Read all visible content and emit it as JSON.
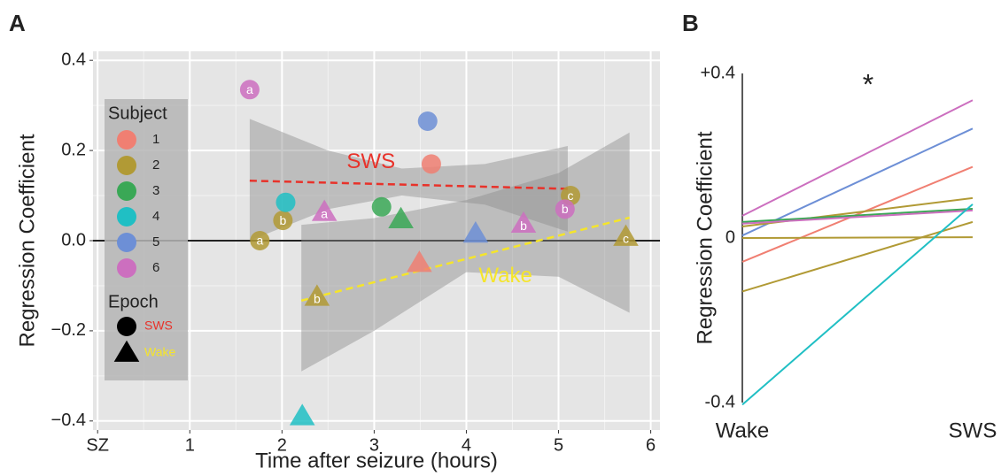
{
  "chart_data": [
    {
      "type": "scatter",
      "panel": "A",
      "xlabel": "Time after seizure (hours)",
      "ylabel": "Regression Coefficient",
      "xlim": [
        -0.05,
        6.1
      ],
      "ylim": [
        -0.42,
        0.42
      ],
      "xticks": [
        {
          "value": 0,
          "label": "SZ"
        },
        1,
        2,
        3,
        4,
        5,
        6
      ],
      "yticks": [
        {
          "value": -0.4,
          "label": "−0.4"
        },
        {
          "value": -0.2,
          "label": "−0.2"
        },
        {
          "value": 0,
          "label": "0.0"
        },
        0.2,
        0.4
      ],
      "grid": true,
      "hline": 0,
      "legend": "upper left",
      "legend_title": "Subject",
      "epoch_title": "Epoch",
      "epochs": [
        {
          "name": "SWS",
          "marker": "circle",
          "color": "#e8322a"
        },
        {
          "name": "Wake",
          "marker": "triangle",
          "color": "#f5e52a"
        }
      ],
      "series": [
        {
          "name": "1",
          "color": "#f07f72",
          "x": [
            3.62,
            3.49
          ],
          "values": [
            0.17,
            -0.05
          ],
          "epoch": [
            "SWS",
            "Wake"
          ],
          "point_labels": [
            null,
            null
          ]
        },
        {
          "name": "2",
          "color": "#b19a35",
          "x": [
            1.76,
            2.01,
            5.13,
            2.38,
            5.73
          ],
          "values": [
            0.0,
            0.045,
            0.1,
            -0.125,
            0.008
          ],
          "epoch": [
            "SWS",
            "SWS",
            "SWS",
            "Wake",
            "Wake"
          ],
          "point_labels": [
            "a",
            "b",
            "c",
            "b",
            "c"
          ]
        },
        {
          "name": "3",
          "color": "#3aa856",
          "x": [
            3.08,
            3.29
          ],
          "values": [
            0.075,
            0.047
          ],
          "epoch": [
            "SWS",
            "Wake"
          ],
          "point_labels": [
            null,
            null
          ]
        },
        {
          "name": "4",
          "color": "#20bfc4",
          "x": [
            2.04,
            2.22
          ],
          "values": [
            0.085,
            -0.39
          ],
          "epoch": [
            "SWS",
            "Wake"
          ],
          "point_labels": [
            null,
            null
          ]
        },
        {
          "name": "5",
          "color": "#6d8fd6",
          "x": [
            3.58,
            4.1
          ],
          "values": [
            0.265,
            0.015
          ],
          "epoch": [
            "SWS",
            "Wake"
          ],
          "point_labels": [
            null,
            null
          ]
        },
        {
          "name": "6",
          "color": "#cc6fbf",
          "x": [
            1.65,
            5.07,
            2.46,
            4.62
          ],
          "values": [
            0.335,
            0.07,
            0.063,
            0.037
          ],
          "epoch": [
            "SWS",
            "SWS",
            "Wake",
            "Wake"
          ],
          "point_labels": [
            "a",
            "b",
            "a",
            "b"
          ]
        }
      ],
      "fits": [
        {
          "name": "SWS",
          "color": "#e8322a",
          "x": [
            1.65,
            5.1
          ],
          "values": [
            0.133,
            0.115
          ],
          "band": {
            "x": [
              1.65,
              2.5,
              3.3,
              4.2,
              5.1
            ],
            "upper": [
              0.27,
              0.2,
              0.16,
              0.17,
              0.21
            ],
            "lower": [
              0.0,
              0.07,
              0.1,
              0.08,
              0.02
            ]
          }
        },
        {
          "name": "Wake",
          "color": "#f5e52a",
          "x": [
            2.21,
            5.77
          ],
          "values": [
            -0.133,
            0.051
          ],
          "band": {
            "x": [
              2.21,
              3,
              4,
              5,
              5.77
            ],
            "upper": [
              0.035,
              0.05,
              0.09,
              0.15,
              0.24
            ],
            "lower": [
              -0.29,
              -0.2,
              -0.07,
              -0.08,
              -0.16
            ]
          }
        }
      ]
    },
    {
      "type": "line",
      "panel": "B",
      "ylabel": "Regression Coefficient",
      "annotation": "*",
      "categories": [
        "Wake",
        "SWS"
      ],
      "ylim": [
        -0.4,
        0.4
      ],
      "yticks": [
        -0.4,
        0,
        {
          "value": 0.4,
          "label": "+0.4"
        }
      ],
      "series": [
        {
          "color": "#cc6fbf",
          "values": [
            0.054,
            0.335
          ]
        },
        {
          "color": "#6d8fd6",
          "values": [
            0.006,
            0.266
          ]
        },
        {
          "color": "#f07f72",
          "values": [
            -0.058,
            0.173
          ]
        },
        {
          "color": "#b19a35",
          "values": [
            0.028,
            0.097
          ]
        },
        {
          "color": "#b19a35",
          "values": [
            0.0,
            0.002
          ]
        },
        {
          "color": "#b19a35",
          "values": [
            -0.13,
            0.039
          ]
        },
        {
          "color": "#3aa856",
          "values": [
            0.039,
            0.071
          ]
        },
        {
          "color": "#cc6fbf",
          "values": [
            0.035,
            0.067
          ]
        },
        {
          "color": "#20bfc4",
          "values": [
            -0.405,
            0.082
          ]
        }
      ]
    }
  ]
}
